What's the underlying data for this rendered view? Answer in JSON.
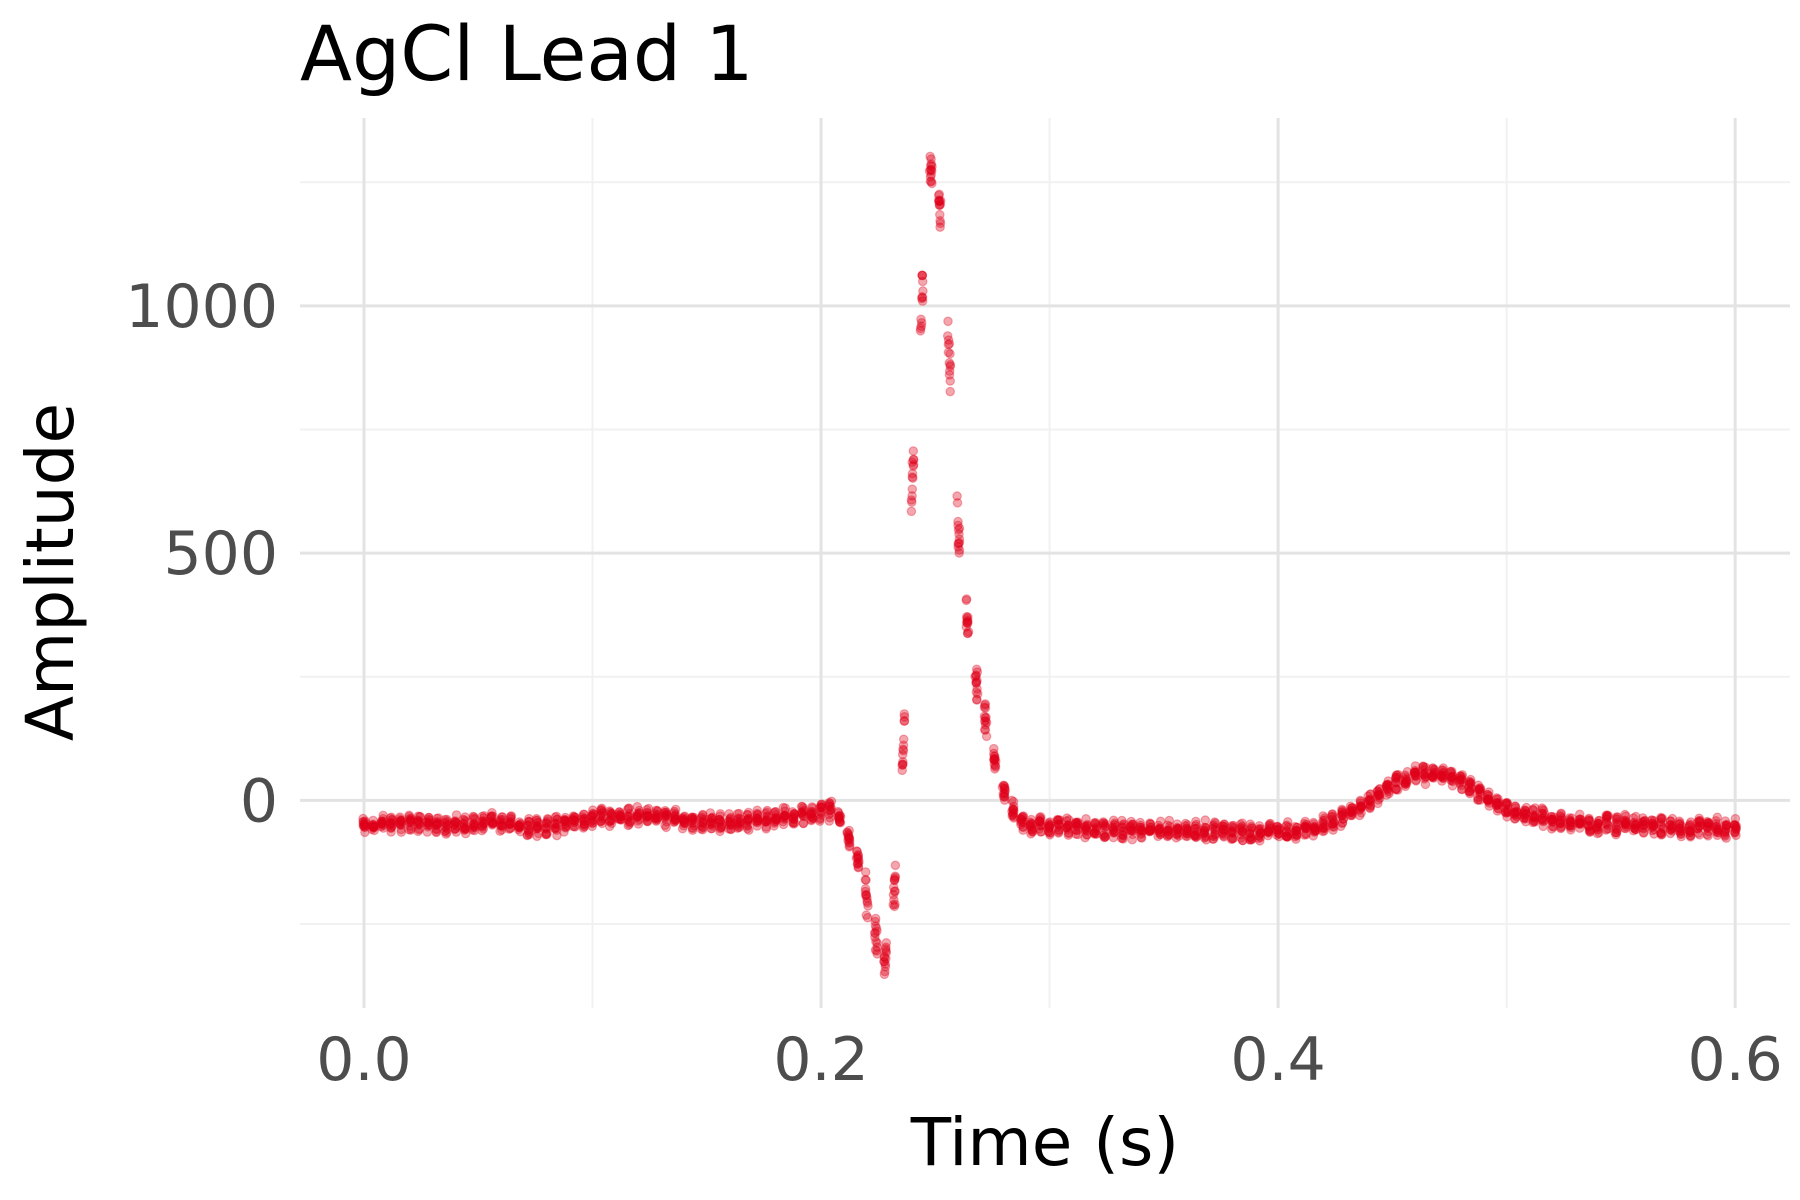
{
  "chart_data": {
    "type": "scatter",
    "title": "AgCl Lead 1",
    "xlabel": "Time (s)",
    "ylabel": "Amplitude",
    "xlim": [
      -0.028,
      0.624
    ],
    "ylim": [
      -420,
      1380
    ],
    "x_ticks": [
      0.0,
      0.2,
      0.4,
      0.6
    ],
    "x_tick_labels": [
      "0.0",
      "0.2",
      "0.4",
      "0.6"
    ],
    "x_minor_ticks": [
      0.1,
      0.3,
      0.5
    ],
    "y_ticks": [
      0,
      500,
      1000
    ],
    "y_tick_labels": [
      "0",
      "500",
      "1000"
    ],
    "y_minor_ticks": [
      -250,
      250,
      750,
      1250
    ],
    "grid": true,
    "legend": "none",
    "point_color": "#e0001b",
    "point_alpha": 0.35,
    "sample_interval_s": 0.004,
    "n_overlaid_beats": 14,
    "baseline_scatter": 22,
    "series": [
      {
        "values": [
          [
            0.0,
            -50
          ],
          [
            0.02,
            -45
          ],
          [
            0.04,
            -50
          ],
          [
            0.06,
            -45
          ],
          [
            0.08,
            -55
          ],
          [
            0.1,
            -35
          ],
          [
            0.12,
            -30
          ],
          [
            0.14,
            -40
          ],
          [
            0.16,
            -45
          ],
          [
            0.18,
            -35
          ],
          [
            0.2,
            -25
          ],
          [
            0.205,
            -20
          ],
          [
            0.21,
            -50
          ],
          [
            0.215,
            -100
          ],
          [
            0.22,
            -200
          ],
          [
            0.225,
            -300
          ],
          [
            0.228,
            -330
          ],
          [
            0.232,
            -200
          ],
          [
            0.236,
            100
          ],
          [
            0.24,
            650
          ],
          [
            0.244,
            1000
          ],
          [
            0.248,
            1280
          ],
          [
            0.252,
            1200
          ],
          [
            0.256,
            900
          ],
          [
            0.26,
            550
          ],
          [
            0.264,
            350
          ],
          [
            0.27,
            200
          ],
          [
            0.276,
            80
          ],
          [
            0.282,
            -10
          ],
          [
            0.29,
            -50
          ],
          [
            0.31,
            -55
          ],
          [
            0.33,
            -60
          ],
          [
            0.35,
            -60
          ],
          [
            0.37,
            -60
          ],
          [
            0.39,
            -65
          ],
          [
            0.41,
            -60
          ],
          [
            0.42,
            -50
          ],
          [
            0.43,
            -30
          ],
          [
            0.44,
            0
          ],
          [
            0.45,
            30
          ],
          [
            0.46,
            50
          ],
          [
            0.47,
            55
          ],
          [
            0.48,
            40
          ],
          [
            0.49,
            10
          ],
          [
            0.5,
            -20
          ],
          [
            0.52,
            -40
          ],
          [
            0.54,
            -50
          ],
          [
            0.56,
            -50
          ],
          [
            0.58,
            -55
          ],
          [
            0.6,
            -55
          ]
        ]
      }
    ]
  }
}
